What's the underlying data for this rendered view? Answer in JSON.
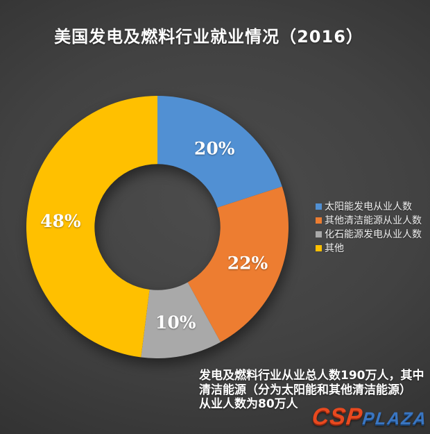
{
  "title": "美国发电及燃料行业就业情况（2016）",
  "chart_data": {
    "type": "pie",
    "subtype": "donut",
    "title": "美国发电及燃料行业就业情况（2016）",
    "categories": [
      "太阳能发电从业人数",
      "其他清洁能源从业人数",
      "化石能源发电从业人数",
      "其他"
    ],
    "values": [
      20,
      22,
      10,
      48
    ],
    "data_labels": [
      "20%",
      "22%",
      "10%",
      "48%"
    ],
    "colors": [
      "#5190D3",
      "#ED7D31",
      "#A9A9A9",
      "#FFC000"
    ],
    "start_angle_deg": 0,
    "direction": "clockwise",
    "donut_hole_ratio": 0.48,
    "legend_position": "right",
    "background_color": "#3d3d3d",
    "label_color": "#ffffff"
  },
  "legend": {
    "items": [
      {
        "label": "太阳能发电从业人数"
      },
      {
        "label": "其他清洁能源从业人数"
      },
      {
        "label": "化石能源发电从业人数"
      },
      {
        "label": "其他"
      }
    ]
  },
  "annotation": {
    "lines": [
      "发电及燃料行业从业总人数190万人，其中",
      "清洁能源（分为太阳能和其他清洁能源）",
      "从业人数为80万人"
    ]
  },
  "watermark": {
    "csp": "CSP",
    "plaza": "PLAZA",
    "csp_color": "#e8491f",
    "plaza_color": "#3a76c2"
  }
}
